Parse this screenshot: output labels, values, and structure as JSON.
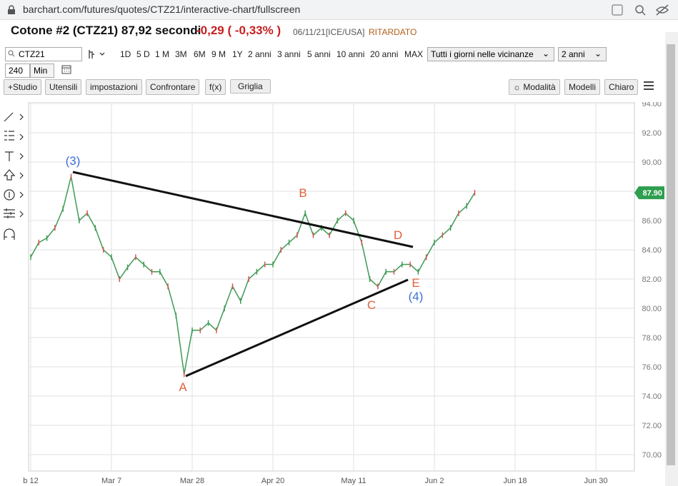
{
  "browser": {
    "url": "barchart.com/futures/quotes/CTZ21/interactive-chart/fullscreen"
  },
  "header": {
    "title": "Cotone #2 (CTZ21) 87,92 secondi",
    "change": "-0,29 ( -0,33% )",
    "date": "06/11/21[ICE/USA]",
    "status": "RITARDATO"
  },
  "toolbar": {
    "symbol": "CTZ21",
    "periods": [
      "1D",
      "5 D",
      "1 M",
      "3M",
      "6M",
      "9 M",
      "1Y",
      "2 anni",
      "3 anni",
      "5 anni",
      "10 anni",
      "20 anni",
      "MAX"
    ],
    "session": "Tutti i giorni nelle vicinanze",
    "range": "2 anni",
    "interval": "240",
    "interval_unit": "Min",
    "buttons": [
      "+Studio",
      "Utensili",
      "impostazioni",
      "Confrontare",
      "f(x)",
      "Griglia"
    ],
    "right_buttons": [
      "☼ Modalità",
      "Modelli",
      "Chiaro"
    ]
  },
  "chart_data": {
    "type": "line",
    "color": "#3f9a55",
    "categories": [
      "b 12",
      null,
      null,
      null,
      null,
      null,
      null,
      null,
      null,
      null,
      "Mar 7",
      null,
      null,
      null,
      null,
      null,
      null,
      null,
      null,
      null,
      "Mar 28",
      null,
      null,
      null,
      null,
      null,
      null,
      null,
      null,
      null,
      "Apr 20",
      null,
      null,
      null,
      null,
      null,
      null,
      null,
      null,
      null,
      "May 11",
      null,
      null,
      null,
      null,
      null,
      null,
      null,
      null,
      null,
      "Jun 2",
      null,
      null,
      null,
      null,
      null,
      null,
      null,
      null,
      null,
      "Jun 18",
      null,
      null,
      null,
      null,
      null,
      null,
      null,
      null,
      null,
      "Jun 30",
      null,
      null,
      null,
      null,
      null
    ],
    "values": [
      83.5,
      84.5,
      84.8,
      85.5,
      86.8,
      89.0,
      86,
      86.5,
      85.5,
      84,
      83.5,
      82,
      82.8,
      83.5,
      83,
      82.5,
      82.5,
      81.5,
      79.5,
      75.5,
      78.5,
      78.5,
      79,
      78.5,
      80,
      81.5,
      80.5,
      82,
      82.5,
      83,
      83,
      84,
      84.5,
      85,
      86.5,
      85,
      85.5,
      85,
      86,
      86.5,
      86,
      84.5,
      82,
      81.5,
      82.5,
      82.5,
      83,
      83,
      82.5,
      83.5,
      84.5,
      85,
      85.5,
      86.5,
      87,
      87.9,
      null,
      null,
      null,
      null,
      null,
      null,
      null,
      null,
      null,
      null,
      null,
      null,
      null,
      null,
      null,
      null,
      null,
      null,
      null,
      null
    ],
    "ylim": [
      68.88,
      94.1
    ],
    "yticks": [
      {
        "value": 70,
        "label": "70.00"
      },
      {
        "value": 72,
        "label": "72.00"
      },
      {
        "value": 74,
        "label": "74.00"
      },
      {
        "value": 76,
        "label": "76.00"
      },
      {
        "value": 78,
        "label": "78.00"
      },
      {
        "value": 80,
        "label": "80.00"
      },
      {
        "value": 82,
        "label": "82.00"
      },
      {
        "value": 84,
        "label": "84.00"
      },
      {
        "value": 86,
        "label": "86.00"
      },
      {
        "value": 88,
        "label": "88.00"
      },
      {
        "value": 90,
        "label": "90.00"
      },
      {
        "value": 92,
        "label": "92.00"
      },
      {
        "value": 94,
        "label": "94.00"
      }
    ],
    "grid": true,
    "price_badge": {
      "value": 87.9,
      "label": "87.90",
      "color": "#2e9e4f"
    },
    "annotations": [
      {
        "text": "(3)",
        "color": "#3e6fd8"
      },
      {
        "text": "A",
        "color": "#e0603a"
      },
      {
        "text": "B",
        "color": "#e0603a"
      },
      {
        "text": "C",
        "color": "#e0603a"
      },
      {
        "text": "D",
        "color": "#e0603a"
      },
      {
        "text": "E",
        "color": "#e0603a"
      },
      {
        "text": "(4)",
        "color": "#3e6fd8"
      }
    ]
  }
}
